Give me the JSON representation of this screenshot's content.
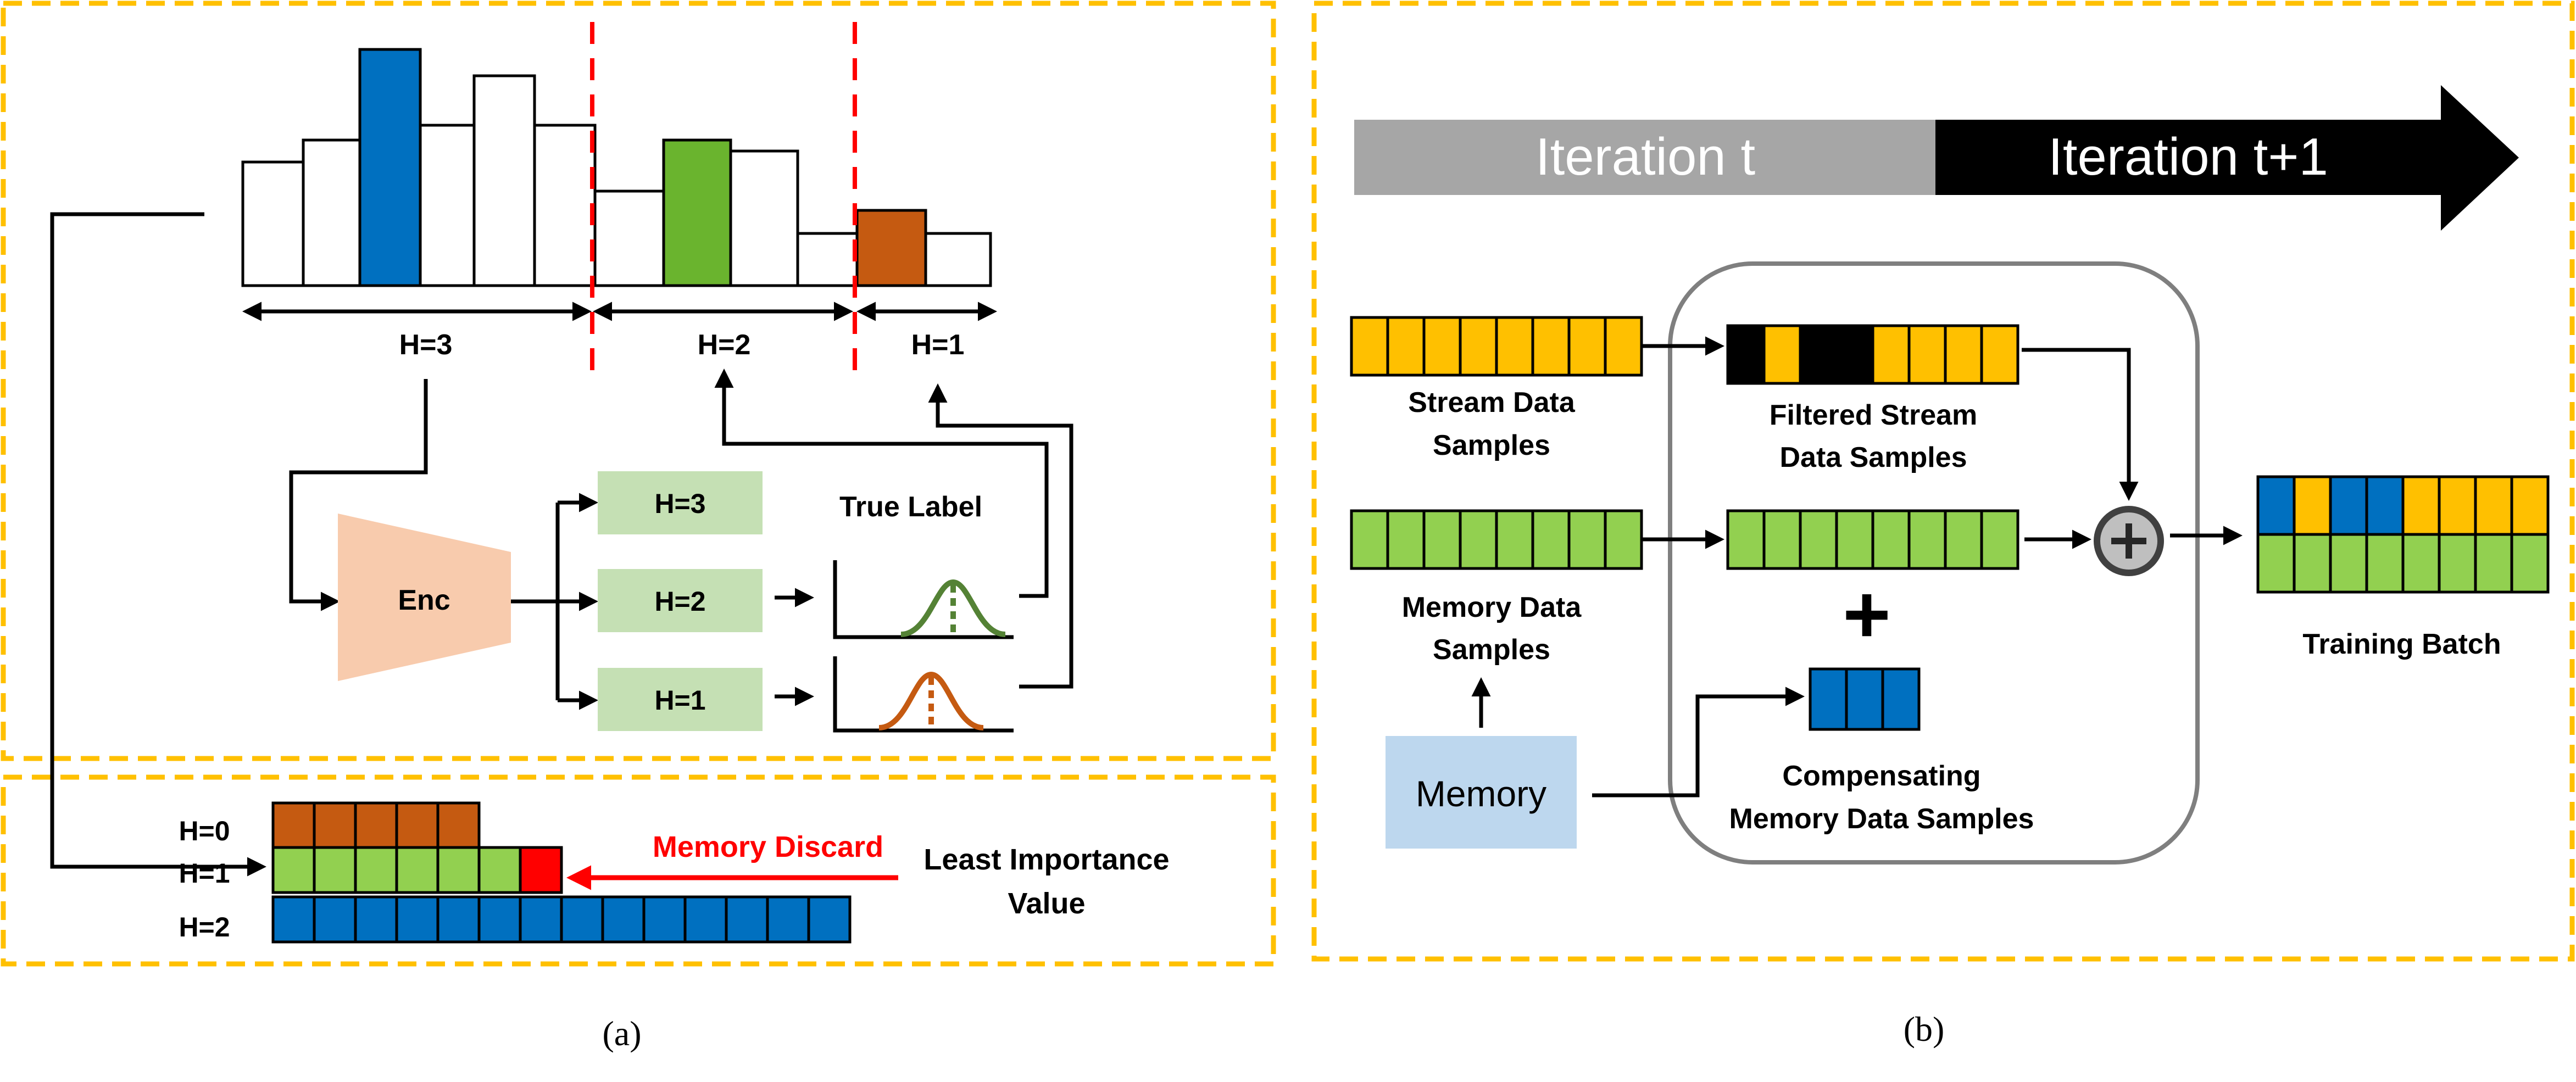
{
  "colors": {
    "frame": "#FFC000",
    "split_line": "#FF0000",
    "blue": "#0070C0",
    "green": "#6AB42E",
    "green_cell": "#92D050",
    "orange": "#C55A11",
    "yellow": "#FFC000",
    "pale_green": "#C5E0B4",
    "enc_fill": "#F8CBAD",
    "memory_fill": "#BDD7EE",
    "discard_red": "#FF0000",
    "iter_gray": "#A6A6A6",
    "iter_black": "#000000"
  },
  "panel_a": {
    "range_labels": [
      "H=3",
      "H=2",
      "H=1"
    ],
    "encoder_label": "Enc",
    "head_labels": [
      "H=3",
      "H=2",
      "H=1"
    ],
    "true_label": "True Label",
    "memory_rows": [
      {
        "label": "H=0",
        "cells": 5,
        "color": "orange"
      },
      {
        "label": "H=1",
        "cells": 7,
        "color": "green",
        "discarded_cell": 7
      },
      {
        "label": "H=2",
        "cells": 14,
        "color": "blue"
      }
    ],
    "discard_label": "Memory Discard",
    "least_importance_line1": "Least Importance",
    "least_importance_line2": "Value",
    "caption": "(a)"
  },
  "panel_b": {
    "iteration_current": "Iteration t",
    "iteration_next": "Iteration t+1",
    "stream_label_line1": "Stream Data",
    "stream_label_line2": "Samples",
    "memory_label_line1": "Memory Data",
    "memory_label_line2": "Samples",
    "memory_box": "Memory",
    "filtered_label_line1": "Filtered Stream",
    "filtered_label_line2": "Data Samples",
    "compensating_label_line1": "Compensating",
    "compensating_label_line2": "Memory Data Samples",
    "plus_symbol": "+",
    "training_batch": "Training Batch",
    "filtered_cells": [
      "black",
      "yellow",
      "black",
      "black",
      "yellow",
      "yellow",
      "yellow",
      "yellow"
    ],
    "batch_top_cells": [
      "blue",
      "yellow",
      "blue",
      "blue",
      "yellow",
      "yellow",
      "yellow",
      "yellow"
    ],
    "caption": "(b)"
  }
}
